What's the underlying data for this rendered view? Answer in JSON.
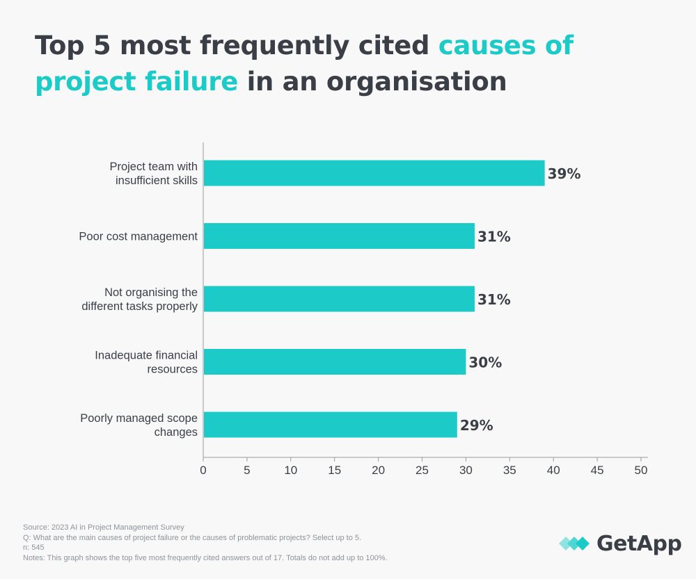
{
  "title": {
    "part1": "Top 5 most frequently cited ",
    "part2": "causes of project failure",
    "part3": " in an organisation"
  },
  "colors": {
    "accent": "#1ccbc8",
    "text": "#3a3f47",
    "axis": "#888888",
    "footer": "#8e9399"
  },
  "chart_data": {
    "type": "bar",
    "orientation": "horizontal",
    "categories": [
      [
        "Project team with",
        "insufficient skills"
      ],
      [
        "Poor cost management"
      ],
      [
        "Not organising the",
        "different tasks properly"
      ],
      [
        "Inadequate financial",
        "resources"
      ],
      [
        "Poorly managed scope",
        "changes"
      ]
    ],
    "values": [
      39,
      31,
      31,
      30,
      29
    ],
    "value_labels": [
      "39%",
      "31%",
      "31%",
      "30%",
      "29%"
    ],
    "xlim": [
      0,
      50
    ],
    "xticks": [
      0,
      5,
      10,
      15,
      20,
      25,
      30,
      35,
      40,
      45,
      50
    ],
    "grid": false,
    "bar_color": "#1ccbc8"
  },
  "footer": {
    "source": "Source: 2023 AI in Project Management Survey",
    "question": "Q: What are the main causes of project failure or the causes of problematic projects? Select up to 5.",
    "n": "n: 545",
    "notes": "Notes: This graph shows the top five most frequently cited answers out of 17. Totals do not add up to 100%."
  },
  "logo": {
    "text": "GetApp",
    "icon": "getapp-logo-icon"
  }
}
